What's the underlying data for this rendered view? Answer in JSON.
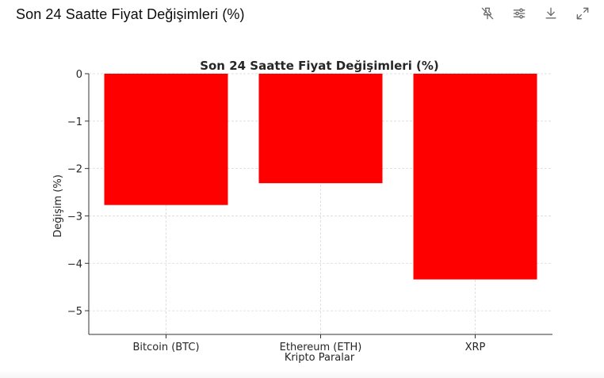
{
  "header": {
    "title": "Son 24 Saatte Fiyat Değişimleri (%)"
  },
  "toolbar": {
    "icons": [
      "pin-off-icon",
      "sliders-icon",
      "download-icon",
      "expand-icon"
    ]
  },
  "chart_data": {
    "type": "bar",
    "title": "Son 24 Saatte Fiyat Değişimleri (%)",
    "xlabel": "Kripto Paralar",
    "ylabel": "Değişim (%)",
    "categories": [
      "Bitcoin (BTC)",
      "Ethereum (ETH)",
      "XRP"
    ],
    "values": [
      -2.77,
      -2.31,
      -4.34
    ],
    "ylim": [
      -5.5,
      0
    ],
    "yticks": [
      0,
      -1,
      -2,
      -3,
      -4,
      -5
    ],
    "ytick_labels": [
      "0",
      "−1",
      "−2",
      "−3",
      "−4",
      "−5"
    ],
    "bar_color": "#ff0000",
    "grid": true
  }
}
